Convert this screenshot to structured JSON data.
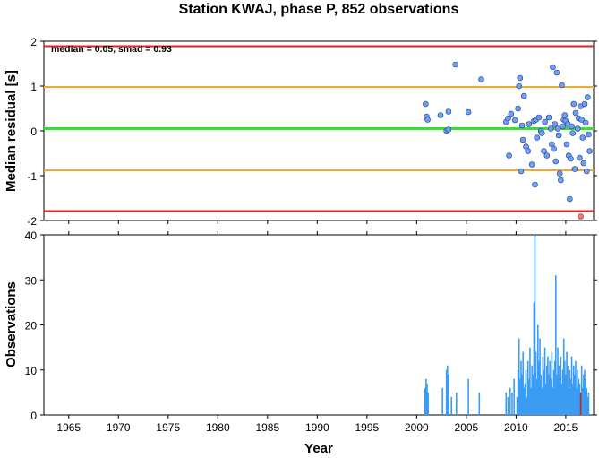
{
  "chart_data": {
    "title": "Station KWAJ, phase P, 852 observations",
    "xlabel": "Year",
    "xlim": [
      1962.5,
      2017.8
    ],
    "xticks": [
      "1965",
      "1970",
      "1975",
      "1980",
      "1985",
      "1990",
      "1995",
      "2000",
      "2005",
      "2010",
      "2015"
    ],
    "xtick_values": [
      1965,
      1970,
      1975,
      1980,
      1985,
      1990,
      1995,
      2000,
      2005,
      2010,
      2015
    ],
    "panels": [
      {
        "type": "scatter",
        "ylabel": "Median residual [s]",
        "ylim": [
          -2,
          2
        ],
        "yticks": [
          "2",
          "1",
          "0",
          "-1",
          "-2"
        ],
        "ytick_values": [
          2,
          1,
          0,
          -1,
          -2
        ],
        "annotation": "median = 0.05, smad = 0.93",
        "reference_lines": [
          {
            "y": 1.89,
            "color": "#e8231f"
          },
          {
            "y": 0.98,
            "color": "#f0a830"
          },
          {
            "y": 0.05,
            "color": "#35e035"
          },
          {
            "y": -0.88,
            "color": "#f0a830"
          },
          {
            "y": -1.79,
            "color": "#e8231f"
          }
        ],
        "point_color": "#6f9ff2",
        "outlier_color": "#f07a70",
        "points": [
          [
            2000.9,
            0.6
          ],
          [
            2001.0,
            0.32
          ],
          [
            2001.1,
            0.25
          ],
          [
            2002.4,
            0.35
          ],
          [
            2003.0,
            0.0
          ],
          [
            2003.2,
            0.03
          ],
          [
            2003.2,
            0.43
          ],
          [
            2003.9,
            1.48
          ],
          [
            2005.2,
            0.42
          ],
          [
            2006.5,
            1.15
          ],
          [
            2009.0,
            0.2
          ],
          [
            2009.2,
            0.28
          ],
          [
            2009.5,
            0.38
          ],
          [
            2009.3,
            -0.55
          ],
          [
            2009.9,
            0.24
          ],
          [
            2010.2,
            0.5
          ],
          [
            2010.3,
            1.0
          ],
          [
            2010.4,
            1.18
          ],
          [
            2010.5,
            -0.9
          ],
          [
            2010.6,
            0.12
          ],
          [
            2010.7,
            -0.2
          ],
          [
            2010.8,
            0.78
          ],
          [
            2011.0,
            -0.35
          ],
          [
            2011.2,
            -0.45
          ],
          [
            2011.3,
            0.15
          ],
          [
            2011.6,
            -0.75
          ],
          [
            2011.8,
            0.22
          ],
          [
            2011.9,
            -1.2
          ],
          [
            2012.0,
            0.25
          ],
          [
            2012.1,
            -0.15
          ],
          [
            2012.3,
            0.3
          ],
          [
            2012.5,
            0.0
          ],
          [
            2012.6,
            -0.05
          ],
          [
            2012.8,
            -0.45
          ],
          [
            2012.9,
            0.2
          ],
          [
            2013.1,
            -0.55
          ],
          [
            2013.3,
            0.3
          ],
          [
            2013.5,
            0.05
          ],
          [
            2013.6,
            -0.3
          ],
          [
            2013.7,
            1.42
          ],
          [
            2013.8,
            -0.4
          ],
          [
            2013.9,
            0.15
          ],
          [
            2014.0,
            -0.68
          ],
          [
            2014.1,
            1.3
          ],
          [
            2014.2,
            0.05
          ],
          [
            2014.3,
            -0.1
          ],
          [
            2014.4,
            -0.95
          ],
          [
            2014.5,
            -1.1
          ],
          [
            2014.6,
            1.02
          ],
          [
            2014.7,
            0.1
          ],
          [
            2014.8,
            0.25
          ],
          [
            2014.9,
            0.35
          ],
          [
            2015.0,
            0.22
          ],
          [
            2015.1,
            -0.3
          ],
          [
            2015.2,
            0.15
          ],
          [
            2015.3,
            -0.55
          ],
          [
            2015.4,
            -1.52
          ],
          [
            2015.5,
            -0.62
          ],
          [
            2015.6,
            0.1
          ],
          [
            2015.7,
            -0.05
          ],
          [
            2015.8,
            0.6
          ],
          [
            2015.9,
            -0.85
          ],
          [
            2016.0,
            0.4
          ],
          [
            2016.2,
            0.05
          ],
          [
            2016.3,
            0.28
          ],
          [
            2016.4,
            -0.6
          ],
          [
            2016.5,
            0.55
          ],
          [
            2016.6,
            0.25
          ],
          [
            2016.7,
            -0.15
          ],
          [
            2016.8,
            -0.72
          ],
          [
            2016.9,
            0.6
          ],
          [
            2017.0,
            0.18
          ],
          [
            2017.1,
            -0.9
          ],
          [
            2017.2,
            0.75
          ],
          [
            2017.3,
            -0.08
          ],
          [
            2017.4,
            -0.45
          ]
        ],
        "outliers": [
          [
            2016.5,
            -1.91
          ]
        ]
      },
      {
        "type": "bar",
        "ylabel": "Observations",
        "ylim": [
          0,
          40
        ],
        "yticks": [
          "40",
          "30",
          "20",
          "10",
          "0"
        ],
        "ytick_values": [
          40,
          30,
          20,
          10,
          0
        ],
        "bar_color": "#3a9cf2",
        "highlight_color": "#d02020",
        "bars": [
          [
            2000.85,
            6
          ],
          [
            2000.95,
            8
          ],
          [
            2001.05,
            7
          ],
          [
            2001.15,
            5
          ],
          [
            2002.6,
            6
          ],
          [
            2003.0,
            10
          ],
          [
            2003.1,
            11
          ],
          [
            2003.2,
            9
          ],
          [
            2003.5,
            4
          ],
          [
            2004.0,
            5
          ],
          [
            2005.2,
            8
          ],
          [
            2006.3,
            5
          ],
          [
            2009.0,
            5
          ],
          [
            2009.2,
            4
          ],
          [
            2009.4,
            6
          ],
          [
            2009.6,
            5
          ],
          [
            2009.8,
            8
          ],
          [
            2010.1,
            4
          ],
          [
            2010.2,
            10
          ],
          [
            2010.3,
            17
          ],
          [
            2010.4,
            8
          ],
          [
            2010.5,
            12
          ],
          [
            2010.6,
            9
          ],
          [
            2010.7,
            14
          ],
          [
            2010.8,
            6
          ],
          [
            2010.9,
            7
          ],
          [
            2011.0,
            10
          ],
          [
            2011.1,
            4
          ],
          [
            2011.2,
            12
          ],
          [
            2011.3,
            8
          ],
          [
            2011.4,
            15
          ],
          [
            2011.5,
            6
          ],
          [
            2011.6,
            11
          ],
          [
            2011.7,
            9
          ],
          [
            2011.8,
            25
          ],
          [
            2011.9,
            40
          ],
          [
            2012.0,
            14
          ],
          [
            2012.1,
            8
          ],
          [
            2012.2,
            20
          ],
          [
            2012.3,
            12
          ],
          [
            2012.4,
            17
          ],
          [
            2012.5,
            9
          ],
          [
            2012.6,
            6
          ],
          [
            2012.7,
            13
          ],
          [
            2012.8,
            10
          ],
          [
            2012.9,
            15
          ],
          [
            2013.0,
            7
          ],
          [
            2013.1,
            11
          ],
          [
            2013.2,
            13
          ],
          [
            2013.3,
            9
          ],
          [
            2013.4,
            12
          ],
          [
            2013.5,
            8
          ],
          [
            2013.6,
            14
          ],
          [
            2013.7,
            6
          ],
          [
            2013.8,
            10
          ],
          [
            2013.9,
            12
          ],
          [
            2014.0,
            31
          ],
          [
            2014.1,
            9
          ],
          [
            2014.2,
            15
          ],
          [
            2014.3,
            11
          ],
          [
            2014.4,
            8
          ],
          [
            2014.5,
            13
          ],
          [
            2014.6,
            7
          ],
          [
            2014.7,
            10
          ],
          [
            2014.8,
            17
          ],
          [
            2014.9,
            12
          ],
          [
            2015.0,
            9
          ],
          [
            2015.1,
            14
          ],
          [
            2015.2,
            11
          ],
          [
            2015.3,
            6
          ],
          [
            2015.4,
            10
          ],
          [
            2015.5,
            8
          ],
          [
            2015.6,
            13
          ],
          [
            2015.7,
            7
          ],
          [
            2015.8,
            11
          ],
          [
            2015.9,
            9
          ],
          [
            2016.0,
            12
          ],
          [
            2016.1,
            6
          ],
          [
            2016.2,
            10
          ],
          [
            2016.3,
            8
          ],
          [
            2016.4,
            7
          ],
          [
            2016.5,
            5
          ],
          [
            2016.6,
            11
          ],
          [
            2016.7,
            6
          ],
          [
            2016.8,
            9
          ],
          [
            2016.9,
            10
          ],
          [
            2017.0,
            8
          ],
          [
            2017.1,
            6
          ],
          [
            2017.2,
            4
          ],
          [
            2017.3,
            5
          ]
        ],
        "highlight_bars": [
          [
            2016.5,
            5
          ]
        ]
      }
    ]
  }
}
